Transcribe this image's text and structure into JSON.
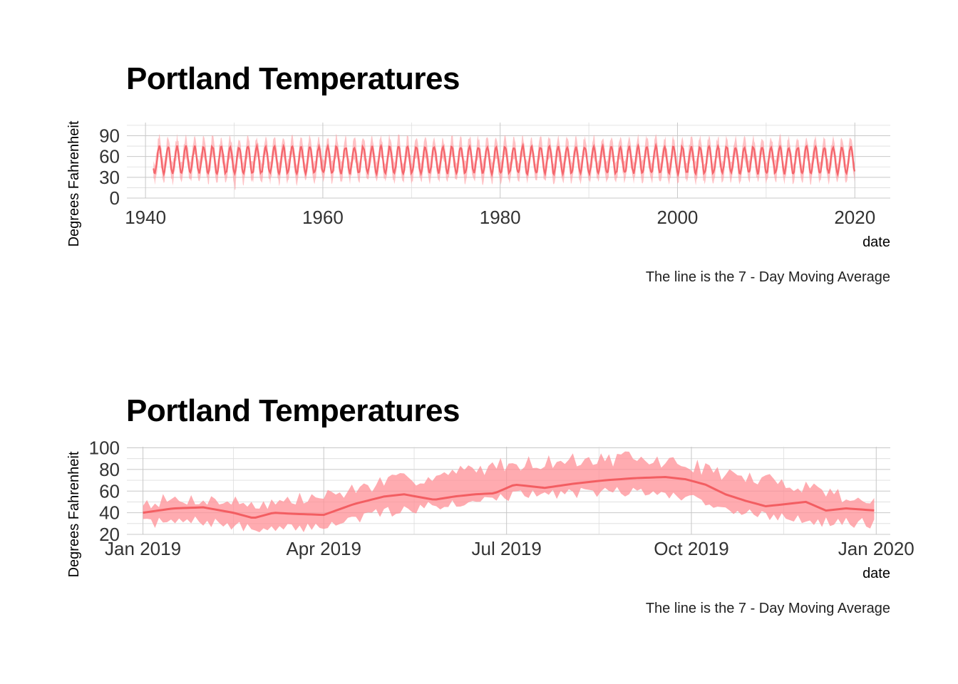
{
  "chart_data": [
    {
      "type": "area",
      "title": "Portland Temperatures",
      "xlabel": "date",
      "ylabel": "Degrees Fahrenheit",
      "caption": "The line is the 7 - Day Moving Average",
      "x_range_years": [
        1940.9,
        2020.0
      ],
      "xlim_years": [
        1937.9,
        2024.0
      ],
      "ylim": [
        0,
        109
      ],
      "x_ticks": [
        "1940",
        "1960",
        "1980",
        "2000",
        "2020"
      ],
      "x_tick_values": [
        1940,
        1960,
        1980,
        2000,
        2020
      ],
      "y_ticks": [
        "0",
        "30",
        "60",
        "90"
      ],
      "y_tick_values": [
        0,
        30,
        60,
        90
      ],
      "seasonal_pattern": {
        "moving_average_summer_peak": 74,
        "moving_average_winter_trough": 36,
        "daily_max_summer_peak": 95,
        "daily_min_winter_trough": 20,
        "record_low": 12,
        "record_low_year": 1950.1
      },
      "series": [
        {
          "name": "band",
          "color": "#ff9aa0"
        },
        {
          "name": "line",
          "color": "#f2555a"
        }
      ],
      "grid": true
    },
    {
      "type": "area",
      "title": "Portland Temperatures",
      "xlabel": "date",
      "ylabel": "Degrees Fahrenheit",
      "caption": "The line is the 7 - Day Moving Average",
      "xlim_days": [
        -8,
        372
      ],
      "ylim": [
        20,
        101
      ],
      "x_ticks": [
        "Jan 2019",
        "Apr 2019",
        "Jul 2019",
        "Oct 2019",
        "Jan 2020"
      ],
      "x_tick_values": [
        0,
        90,
        181,
        273,
        365
      ],
      "y_ticks": [
        "20",
        "40",
        "60",
        "80",
        "100"
      ],
      "y_tick_values": [
        20,
        40,
        60,
        80,
        100
      ],
      "moving_average": {
        "day": [
          0,
          15,
          30,
          45,
          55,
          65,
          75,
          90,
          105,
          120,
          130,
          145,
          155,
          165,
          175,
          185,
          200,
          215,
          230,
          245,
          260,
          270,
          280,
          290,
          300,
          310,
          320,
          330,
          340,
          350,
          365
        ],
        "value": [
          40,
          44,
          45,
          40,
          35,
          40,
          39,
          38,
          48,
          55,
          57,
          52,
          55,
          57,
          58,
          66,
          63,
          67,
          70,
          72,
          73,
          71,
          66,
          57,
          51,
          46,
          48,
          50,
          42,
          44,
          42
        ]
      },
      "band_upper": {
        "day": [
          0,
          30,
          60,
          90,
          120,
          150,
          180,
          210,
          240,
          270,
          300,
          330,
          365
        ],
        "value": [
          50,
          52,
          48,
          55,
          68,
          75,
          85,
          88,
          90,
          85,
          72,
          65,
          48
        ]
      },
      "band_lower": {
        "day": [
          0,
          30,
          60,
          90,
          120,
          150,
          180,
          210,
          240,
          270,
          300,
          330,
          365
        ],
        "value": [
          30,
          32,
          23,
          28,
          40,
          48,
          55,
          58,
          60,
          55,
          40,
          32,
          30
        ]
      },
      "extremes": {
        "max": 98,
        "min": 22
      },
      "series": [
        {
          "name": "band",
          "color": "#ff9aa0"
        },
        {
          "name": "line",
          "color": "#f2555a"
        }
      ],
      "grid": true
    }
  ]
}
